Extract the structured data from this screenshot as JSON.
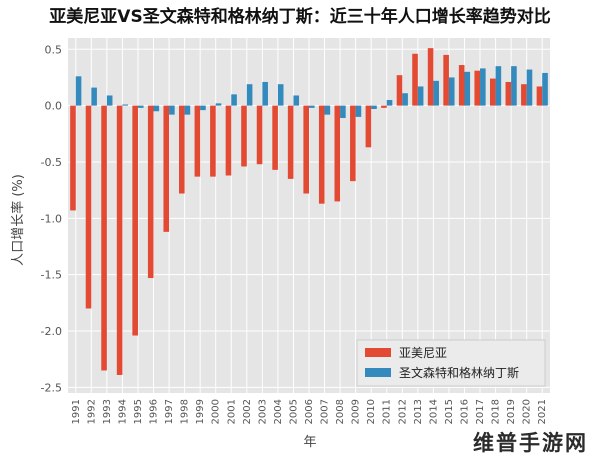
{
  "chart_data": {
    "type": "bar",
    "title": "亚美尼亚VS圣文森特和格林纳丁斯：近三十年人口增长率趋势对比",
    "xlabel": "年",
    "ylabel": "人口增长率 (%)",
    "ylim": [
      -2.55,
      0.6
    ],
    "yticks": [
      -2.5,
      -2.0,
      -1.5,
      -1.0,
      -0.5,
      0.0,
      0.5
    ],
    "ytick_labels": [
      "-2.5",
      "-2.0",
      "-1.5",
      "-1.0",
      "-0.5",
      "0.0",
      "0.5"
    ],
    "grid": true,
    "legend_position": "lower-right",
    "categories": [
      "1991",
      "1992",
      "1993",
      "1994",
      "1995",
      "1996",
      "1997",
      "1998",
      "1999",
      "2000",
      "2001",
      "2002",
      "2003",
      "2004",
      "2005",
      "2006",
      "2007",
      "2008",
      "2009",
      "2010",
      "2011",
      "2012",
      "2013",
      "2014",
      "2015",
      "2016",
      "2017",
      "2018",
      "2019",
      "2020",
      "2021"
    ],
    "series": [
      {
        "name": "亚美尼亚",
        "color": "#e24a33",
        "values": [
          -0.93,
          -1.8,
          -2.35,
          -2.39,
          -2.04,
          -1.53,
          -1.12,
          -0.78,
          -0.63,
          -0.63,
          -0.62,
          -0.54,
          -0.52,
          -0.57,
          -0.65,
          -0.78,
          -0.87,
          -0.85,
          -0.67,
          -0.37,
          -0.02,
          0.27,
          0.46,
          0.51,
          0.45,
          0.36,
          0.31,
          0.24,
          0.21,
          0.19,
          0.17
        ]
      },
      {
        "name": "圣文森特和格林纳丁斯",
        "color": "#348abd",
        "values": [
          0.26,
          0.16,
          0.09,
          0.01,
          -0.02,
          -0.05,
          -0.08,
          -0.08,
          -0.04,
          0.02,
          0.1,
          0.19,
          0.21,
          0.19,
          0.09,
          -0.02,
          -0.08,
          -0.11,
          -0.1,
          -0.03,
          0.05,
          0.11,
          0.17,
          0.22,
          0.25,
          0.3,
          0.33,
          0.35,
          0.35,
          0.32,
          0.29
        ]
      }
    ]
  },
  "watermark": "维普手游网"
}
